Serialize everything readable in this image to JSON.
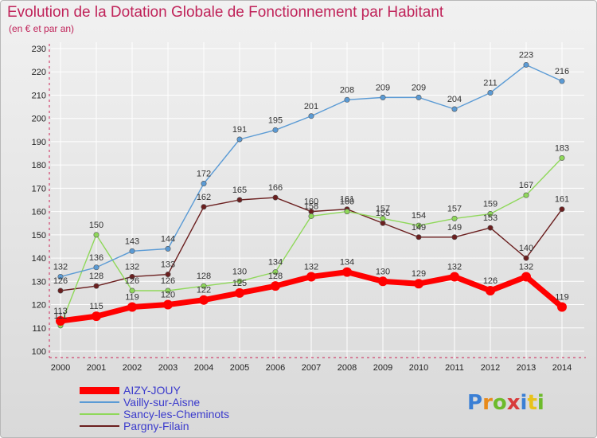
{
  "title": "Evolution de la Dotation Globale de Fonctionnement par Habitant",
  "subtitle": "(en € et par an)",
  "logo": "Proxiti",
  "chart_data": {
    "type": "line",
    "x": [
      "2000",
      "2001",
      "2002",
      "2003",
      "2004",
      "2005",
      "2006",
      "2007",
      "2008",
      "2009",
      "2010",
      "2011",
      "2012",
      "2013",
      "2014"
    ],
    "ylim": [
      100,
      230
    ],
    "yticks": [
      100,
      110,
      120,
      130,
      140,
      150,
      160,
      170,
      180,
      190,
      200,
      210,
      220,
      230
    ],
    "grid": true,
    "legend_position": "bottom-left",
    "series": [
      {
        "name": "AIZY-JOUY",
        "color": "#ff0000",
        "values": [
          113,
          115,
          119,
          120,
          122,
          125,
          128,
          132,
          134,
          130,
          129,
          132,
          126,
          132,
          119
        ]
      },
      {
        "name": "Vailly-sur-Aisne",
        "color": "#5b9bd5",
        "values": [
          132,
          136,
          143,
          144,
          172,
          191,
          195,
          201,
          208,
          209,
          209,
          204,
          211,
          223,
          216
        ]
      },
      {
        "name": "Sancy-les-Cheminots",
        "color": "#8fd85a",
        "values": [
          111,
          150,
          126,
          126,
          128,
          130,
          134,
          158,
          160,
          157,
          154,
          157,
          159,
          167,
          183
        ]
      },
      {
        "name": "Pargny-Filain",
        "color": "#6b1f1f",
        "values": [
          126,
          128,
          132,
          133,
          162,
          165,
          166,
          160,
          161,
          155,
          149,
          149,
          153,
          140,
          161
        ]
      }
    ],
    "labels": [
      {
        "series": 0,
        "show": [
          true,
          true,
          true,
          true,
          true,
          true,
          true,
          true,
          true,
          true,
          true,
          true,
          true,
          true,
          true
        ],
        "text": [
          "113",
          "115",
          "119",
          "120",
          "122",
          "125",
          "128",
          "132",
          "134",
          "130",
          "129",
          "132",
          "126",
          "132",
          "119"
        ]
      },
      {
        "series": 1,
        "show": [
          true,
          true,
          true,
          true,
          true,
          true,
          true,
          true,
          true,
          true,
          true,
          true,
          true,
          true,
          true
        ],
        "text": [
          "132",
          "136",
          "143",
          "144",
          "172",
          "191",
          "195",
          "201",
          "208",
          "209",
          "209",
          "204",
          "211",
          "223",
          "216"
        ]
      },
      {
        "series": 2,
        "show": [
          true,
          true,
          true,
          true,
          true,
          true,
          true,
          true,
          true,
          true,
          true,
          true,
          true,
          true,
          true
        ],
        "text": [
          "111",
          "150",
          "126",
          "126",
          "128",
          "130",
          "134",
          "158",
          "160",
          "157",
          "154",
          "157",
          "159",
          "167",
          "183"
        ]
      },
      {
        "series": 3,
        "show": [
          true,
          true,
          true,
          true,
          true,
          true,
          true,
          true,
          true,
          true,
          true,
          true,
          true,
          true,
          true
        ],
        "text": [
          "126",
          "128",
          "132",
          "133",
          "162",
          "165",
          "166",
          "160",
          "161",
          "155",
          "149",
          "149",
          "153",
          "140",
          "161"
        ]
      }
    ]
  }
}
